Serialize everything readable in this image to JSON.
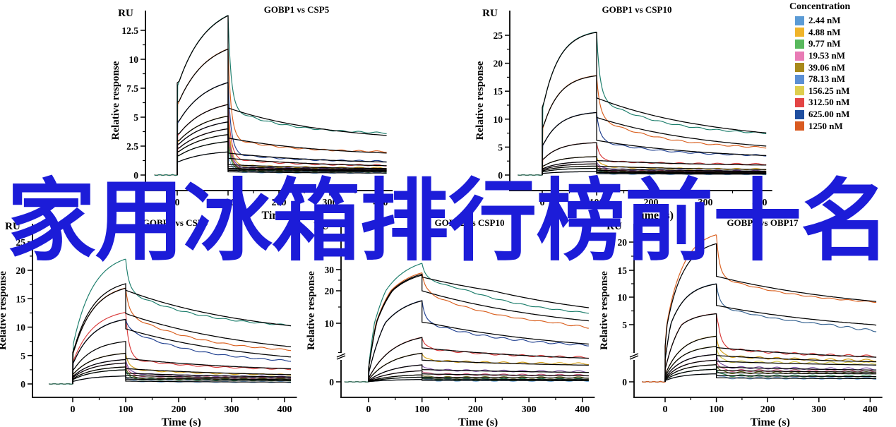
{
  "watermark": {
    "text": "家用冰箱排行榜前十名",
    "color": "#1c1cd8"
  },
  "legend": {
    "title": "Concentration",
    "position": "top-right",
    "entries": [
      {
        "label": "2.44 nM",
        "color": "#5B9BD5"
      },
      {
        "label": "4.88 nM",
        "color": "#F0B429"
      },
      {
        "label": "9.77 nM",
        "color": "#58B85C"
      },
      {
        "label": "19.53 nM",
        "color": "#E87BB5"
      },
      {
        "label": "39.06 nM",
        "color": "#A8891A"
      },
      {
        "label": "78.13 nM",
        "color": "#5B8FD4"
      },
      {
        "label": "156.25 nM",
        "color": "#DECE4E"
      },
      {
        "label": "312.50 nM",
        "color": "#E34444"
      },
      {
        "label": "625.00 nM",
        "color": "#1F4E9F"
      },
      {
        "label": "1250 nM",
        "color": "#D95A20"
      }
    ]
  },
  "chart_data": [
    {
      "type": "line",
      "title": "GOBP1 vs CSP5",
      "y_unit": "RU",
      "ylabel": "Relative response",
      "xlabel": "Time (s)",
      "xlim": [
        -50,
        415
      ],
      "ylim": [
        0,
        14
      ],
      "xticks": [
        0,
        100,
        200,
        300,
        400
      ],
      "yticks": [
        0,
        2.5,
        5,
        7.5,
        10,
        12.5
      ],
      "axis_break": false,
      "phases": {
        "baseline_start": -45,
        "association_start": 0,
        "dissociation_start": 100,
        "end": 410
      },
      "series": [
        {
          "concentration": "1250 nM",
          "color": "#1b7d6b",
          "peak": 13.8,
          "drop": 5.8,
          "end": 3.5
        },
        {
          "concentration": "625.00 nM",
          "color": "#d95f1e",
          "peak": 10.9,
          "drop": 3.2,
          "end": 1.95
        },
        {
          "concentration": "312.50 nM",
          "color": "#1f3f8f",
          "peak": 8.0,
          "drop": 1.9,
          "end": 1.15
        },
        {
          "concentration": "156.25 nM",
          "color": "#d93a3a",
          "peak": 6.1,
          "drop": 1.45,
          "end": 0.8
        },
        {
          "concentration": "78.13 nM",
          "color": "#d4a017",
          "peak": 5.1,
          "drop": 0.9,
          "end": 0.6
        },
        {
          "concentration": "39.06 nM",
          "color": "#7a4fa3",
          "peak": 4.6,
          "drop": 0.72,
          "end": 0.52
        },
        {
          "concentration": "19.53 nM",
          "color": "#c8527a",
          "peak": 4.0,
          "drop": 0.58,
          "end": 0.45
        },
        {
          "concentration": "9.77 nM",
          "color": "#6b6b1f",
          "peak": 3.5,
          "drop": 0.5,
          "end": 0.4
        },
        {
          "concentration": "4.88 nM",
          "color": "#2e8b57",
          "peak": 2.9,
          "drop": 0.4,
          "end": 0.3
        },
        {
          "concentration": "2.44 nM",
          "color": "#7aa9d8",
          "peak": 2.0,
          "drop": 0.28,
          "end": 0.18
        }
      ]
    },
    {
      "type": "line",
      "title": "GOBP1 vs CSP10",
      "y_unit": "RU",
      "ylabel": "Relative response",
      "xlabel": "Time (s)",
      "xlim": [
        -50,
        415
      ],
      "ylim": [
        0,
        27
      ],
      "xticks": [
        0,
        100,
        200,
        300,
        400
      ],
      "yticks": [
        0,
        5,
        10,
        15,
        20,
        25
      ],
      "axis_break": false,
      "phases": {
        "baseline_start": -45,
        "association_start": 0,
        "dissociation_start": 100,
        "end": 410
      },
      "series": [
        {
          "concentration": "1250 nM",
          "color": "#1b7d6b",
          "peak": 25.6,
          "drop": 13.8,
          "end": 7.0
        },
        {
          "concentration": "625.00 nM",
          "color": "#d95f1e",
          "peak": 17.8,
          "drop": 10.3,
          "end": 4.5
        },
        {
          "concentration": "312.50 nM",
          "color": "#1f3f8f",
          "peak": 11.2,
          "drop": 6.2,
          "end": 3.3
        },
        {
          "concentration": "156.25 nM",
          "color": "#d93a3a",
          "peak": 5.8,
          "drop": 2.6,
          "end": 1.9
        },
        {
          "concentration": "78.13 nM",
          "color": "#d4a017",
          "peak": 3.3,
          "drop": 1.6,
          "end": 1.0
        },
        {
          "concentration": "39.06 nM",
          "color": "#7a4fa3",
          "peak": 2.4,
          "drop": 1.15,
          "end": 0.7
        },
        {
          "concentration": "19.53 nM",
          "color": "#c8527a",
          "peak": 2.0,
          "drop": 0.85,
          "end": 0.55
        },
        {
          "concentration": "9.77 nM",
          "color": "#6b6b1f",
          "peak": 1.6,
          "drop": 0.6,
          "end": 0.4
        },
        {
          "concentration": "4.88 nM",
          "color": "#2e8b57",
          "peak": 1.2,
          "drop": 0.45,
          "end": 0.3
        },
        {
          "concentration": "2.44 nM",
          "color": "#7aa9d8",
          "peak": 0.6,
          "drop": 0.25,
          "end": 0.15
        }
      ]
    },
    {
      "type": "line",
      "title": "GOBP2 vs CSP5",
      "y_unit": "RU",
      "ylabel": "Relative response",
      "xlabel": "Time (s)",
      "xlim": [
        -50,
        415
      ],
      "ylim": [
        0,
        26
      ],
      "xticks": [
        0,
        100,
        200,
        300,
        400
      ],
      "yticks": [
        0,
        5,
        10,
        15,
        20,
        25
      ],
      "axis_break": false,
      "phases": {
        "baseline_start": -45,
        "association_start": 0,
        "dissociation_start": 100,
        "end": 410
      },
      "series": [
        {
          "concentration": "1250 nM",
          "color": "#1b7d6b",
          "peak": 17.7,
          "spike": 22.0,
          "drop": 16.5,
          "end": 9.6
        },
        {
          "concentration": "625.00 nM",
          "color": "#d95f1e",
          "peak": 16.9,
          "drop": 12.4,
          "end": 5.2
        },
        {
          "concentration": "312.50 nM",
          "color": "#1f3f8f",
          "peak": 11.4,
          "drop": 9.7,
          "end": 3.4
        },
        {
          "concentration": "156.25 nM",
          "color": "#d93a3a",
          "peak": 7.5,
          "spike": 12.6,
          "drop": 4.5,
          "end": 2.4
        },
        {
          "concentration": "78.13 nM",
          "color": "#d4a017",
          "peak": 5.4,
          "drop": 2.7,
          "end": 1.5
        },
        {
          "concentration": "39.06 nM",
          "color": "#7a4fa3",
          "peak": 4.3,
          "drop": 1.9,
          "end": 1.2
        },
        {
          "concentration": "19.53 nM",
          "color": "#c8527a",
          "peak": 3.7,
          "drop": 1.5,
          "end": 1.0
        },
        {
          "concentration": "9.77 nM",
          "color": "#6b6b1f",
          "peak": 3.0,
          "drop": 1.1,
          "end": 0.8
        },
        {
          "concentration": "4.88 nM",
          "color": "#2e8b57",
          "peak": 2.5,
          "drop": 0.85,
          "end": 0.6
        },
        {
          "concentration": "2.44 nM",
          "color": "#7aa9d8",
          "peak": 1.4,
          "drop": 0.5,
          "end": 0.3
        }
      ]
    },
    {
      "type": "line",
      "title": "GOBP2 vs CSP10",
      "y_unit": "RU",
      "ylabel": "Relative response",
      "xlabel": "Time (s)",
      "xlim": [
        -50,
        415
      ],
      "ylim": [
        0,
        35
      ],
      "xticks": [
        0,
        100,
        200,
        300,
        400
      ],
      "yticks": [
        0,
        10,
        20,
        30
      ],
      "axis_break": true,
      "phases": {
        "baseline_start": -45,
        "association_start": 0,
        "dissociation_start": 100,
        "end": 410
      },
      "series": [
        {
          "concentration": "1250 nM",
          "color": "#1b7d6b",
          "peak": 28.0,
          "spike": 33.0,
          "drop": 26.5,
          "end": 11.0
        },
        {
          "concentration": "625.00 nM",
          "color": "#d95f1e",
          "peak": 27.5,
          "spike": 28.5,
          "drop": 20.0,
          "end": 7.5
        },
        {
          "concentration": "312.50 nM",
          "color": "#1f3f8f",
          "peak": 17.0,
          "drop": 10.3,
          "end": 5.6
        },
        {
          "concentration": "156.25 nM",
          "color": "#d93a3a",
          "peak": 7.6,
          "drop": 5.8,
          "end": 3.9
        },
        {
          "concentration": "78.13 nM",
          "color": "#d4a017",
          "peak": 4.9,
          "drop": 3.7,
          "end": 3.0
        },
        {
          "concentration": "39.06 nM",
          "color": "#7a4fa3",
          "peak": 2.9,
          "drop": 2.1,
          "end": 1.7
        },
        {
          "concentration": "19.53 nM",
          "color": "#c8527a",
          "peak": 1.9,
          "drop": 1.35,
          "end": 1.1
        },
        {
          "concentration": "9.77 nM",
          "color": "#6b6b1f",
          "peak": 1.2,
          "drop": 0.8,
          "end": 0.7
        },
        {
          "concentration": "4.88 nM",
          "color": "#2e8b57",
          "peak": 0.8,
          "drop": 0.5,
          "end": 0.4
        },
        {
          "concentration": "2.44 nM",
          "color": "#7aa9d8",
          "peak": 0.4,
          "drop": 0.25,
          "end": 0.2
        }
      ]
    },
    {
      "type": "line",
      "title": "GOBP2 vs OBP17",
      "y_unit": "RU",
      "ylabel": "Relative response",
      "xlabel": "Time (s)",
      "xlim": [
        -50,
        415
      ],
      "ylim": [
        0,
        22
      ],
      "xticks": [
        0,
        100,
        200,
        300,
        400
      ],
      "yticks": [
        0,
        5,
        10,
        15,
        20
      ],
      "axis_break": true,
      "phases": {
        "baseline_start": -45,
        "association_start": 0,
        "dissociation_start": 100,
        "end": 410
      },
      "series": [
        {
          "concentration": "1250 nM",
          "color": "#d95f1e",
          "peak": 19.8,
          "spike": 21.3,
          "drop": 13.9,
          "end": 8.2
        },
        {
          "concentration": "625.00 nM",
          "color": "#33608f",
          "peak": 12.5,
          "drop": 8.5,
          "end": 3.7
        },
        {
          "concentration": "312.50 nM",
          "color": "#d93a3a",
          "peak": 7.0,
          "drop": 3.0,
          "end": 2.1
        },
        {
          "concentration": "156.25 nM",
          "color": "#d4a017",
          "peak": 4.0,
          "drop": 2.3,
          "end": 1.8
        },
        {
          "concentration": "78.13 nM",
          "color": "#d8cc4a",
          "peak": 3.1,
          "drop": 1.8,
          "end": 1.6
        },
        {
          "concentration": "39.06 nM",
          "color": "#7a4fa3",
          "peak": 2.4,
          "drop": 1.3,
          "end": 1.1
        },
        {
          "concentration": "19.53 nM",
          "color": "#c8527a",
          "peak": 1.9,
          "drop": 1.0,
          "end": 0.95
        },
        {
          "concentration": "9.77 nM",
          "color": "#6b6b1f",
          "peak": 1.5,
          "drop": 0.8,
          "end": 0.8
        },
        {
          "concentration": "4.88 nM",
          "color": "#2e8b57",
          "peak": 1.1,
          "drop": 0.55,
          "end": 0.5
        },
        {
          "concentration": "2.44 nM",
          "color": "#7aa9d8",
          "peak": 0.7,
          "drop": 0.35,
          "end": 0.3
        }
      ]
    }
  ]
}
